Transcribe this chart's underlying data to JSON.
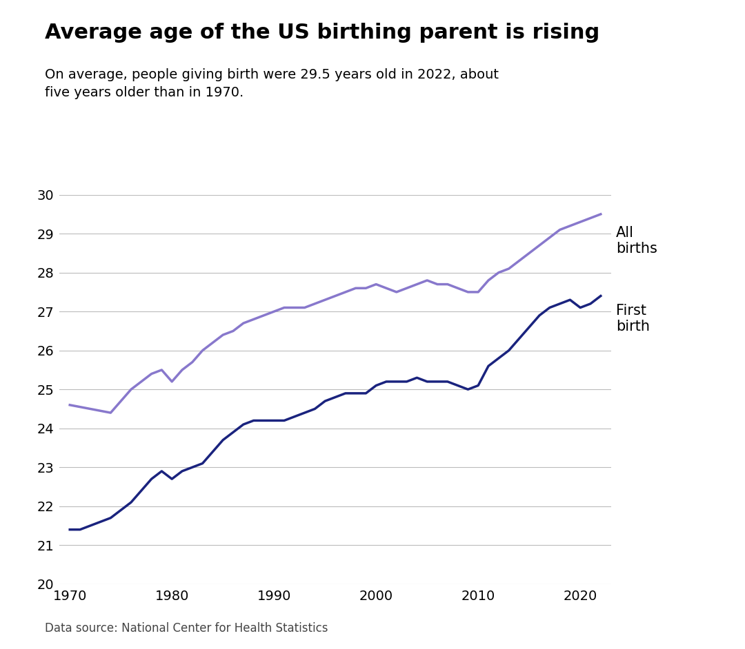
{
  "title": "Average age of the US birthing parent is rising",
  "subtitle": "On average, people giving birth were 29.5 years old in 2022, about\nfive years older than in 1970.",
  "source": "Data source: National Center for Health Statistics",
  "all_births_years": [
    1970,
    1971,
    1972,
    1973,
    1974,
    1975,
    1976,
    1977,
    1978,
    1979,
    1980,
    1981,
    1982,
    1983,
    1984,
    1985,
    1986,
    1987,
    1988,
    1989,
    1990,
    1991,
    1992,
    1993,
    1994,
    1995,
    1996,
    1997,
    1998,
    1999,
    2000,
    2001,
    2002,
    2003,
    2004,
    2005,
    2006,
    2007,
    2008,
    2009,
    2010,
    2011,
    2012,
    2013,
    2014,
    2015,
    2016,
    2017,
    2018,
    2019,
    2020,
    2021,
    2022
  ],
  "all_births_values": [
    24.6,
    24.55,
    24.5,
    24.45,
    24.4,
    24.7,
    25.0,
    25.2,
    25.4,
    25.5,
    25.2,
    25.5,
    25.7,
    26.0,
    26.2,
    26.4,
    26.5,
    26.7,
    26.8,
    26.9,
    27.0,
    27.1,
    27.1,
    27.1,
    27.2,
    27.3,
    27.4,
    27.5,
    27.6,
    27.6,
    27.7,
    27.6,
    27.5,
    27.6,
    27.7,
    27.8,
    27.7,
    27.7,
    27.6,
    27.5,
    27.5,
    27.8,
    28.0,
    28.1,
    28.3,
    28.5,
    28.7,
    28.9,
    29.1,
    29.2,
    29.3,
    29.4,
    29.5
  ],
  "first_birth_years": [
    1970,
    1971,
    1972,
    1973,
    1974,
    1975,
    1976,
    1977,
    1978,
    1979,
    1980,
    1981,
    1982,
    1983,
    1984,
    1985,
    1986,
    1987,
    1988,
    1989,
    1990,
    1991,
    1992,
    1993,
    1994,
    1995,
    1996,
    1997,
    1998,
    1999,
    2000,
    2001,
    2002,
    2003,
    2004,
    2005,
    2006,
    2007,
    2008,
    2009,
    2010,
    2011,
    2012,
    2013,
    2014,
    2015,
    2016,
    2017,
    2018,
    2019,
    2020,
    2021,
    2022
  ],
  "first_birth_values": [
    21.4,
    21.4,
    21.5,
    21.6,
    21.7,
    21.9,
    22.1,
    22.4,
    22.7,
    22.9,
    22.7,
    22.9,
    23.0,
    23.1,
    23.4,
    23.7,
    23.9,
    24.1,
    24.2,
    24.2,
    24.2,
    24.2,
    24.3,
    24.4,
    24.5,
    24.7,
    24.8,
    24.9,
    24.9,
    24.9,
    25.1,
    25.2,
    25.2,
    25.2,
    25.3,
    25.2,
    25.2,
    25.2,
    25.1,
    25.0,
    25.1,
    25.6,
    25.8,
    26.0,
    26.3,
    26.6,
    26.9,
    27.1,
    27.2,
    27.3,
    27.1,
    27.2,
    27.4
  ],
  "all_births_color": "#8878cc",
  "first_birth_color": "#1a237e",
  "line_width": 2.5,
  "ylim": [
    20,
    30
  ],
  "yticks": [
    20,
    21,
    22,
    23,
    24,
    25,
    26,
    27,
    28,
    29,
    30
  ],
  "xticks": [
    1970,
    1980,
    1990,
    2000,
    2010,
    2020
  ],
  "background_color": "#ffffff",
  "grid_color": "#bbbbbb",
  "title_fontsize": 22,
  "subtitle_fontsize": 14,
  "tick_fontsize": 14,
  "label_fontsize": 15,
  "source_fontsize": 12
}
